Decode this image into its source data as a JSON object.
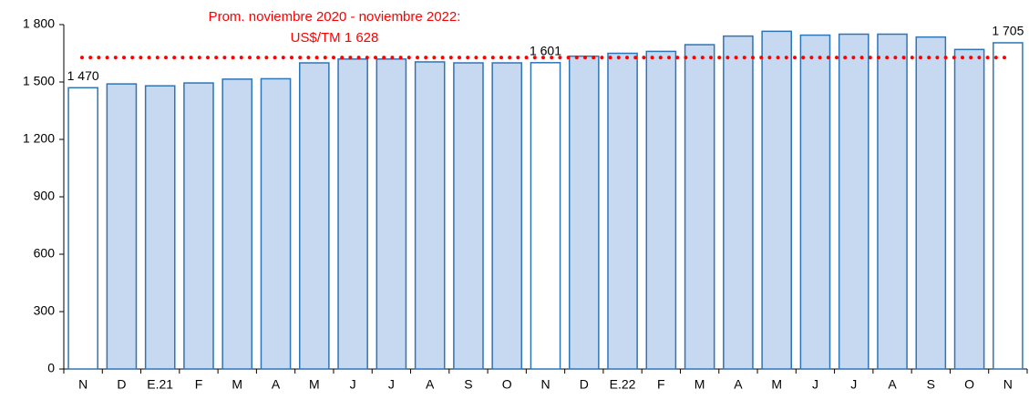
{
  "chart_data": {
    "type": "bar",
    "categories": [
      "N",
      "D",
      "E.21",
      "F",
      "M",
      "A",
      "M",
      "J",
      "J",
      "A",
      "S",
      "O",
      "N",
      "D",
      "E.22",
      "F",
      "M",
      "A",
      "M",
      "J",
      "J",
      "A",
      "S",
      "O",
      "N"
    ],
    "values": [
      1470,
      1490,
      1480,
      1495,
      1515,
      1517,
      1600,
      1620,
      1620,
      1605,
      1600,
      1600,
      1601,
      1635,
      1650,
      1660,
      1695,
      1740,
      1765,
      1745,
      1750,
      1750,
      1735,
      1670,
      1705
    ],
    "value_labels": [
      "1 470",
      null,
      null,
      null,
      null,
      null,
      null,
      null,
      null,
      null,
      null,
      null,
      "1 601",
      null,
      null,
      null,
      null,
      null,
      null,
      null,
      null,
      null,
      null,
      null,
      "1 705"
    ],
    "colors": [
      "#ffffff",
      "#c6d9f1",
      "#c6d9f1",
      "#c6d9f1",
      "#c6d9f1",
      "#c6d9f1",
      "#c6d9f1",
      "#c6d9f1",
      "#c6d9f1",
      "#c6d9f1",
      "#c6d9f1",
      "#c6d9f1",
      "#ffffff",
      "#c6d9f1",
      "#c6d9f1",
      "#c6d9f1",
      "#c6d9f1",
      "#c6d9f1",
      "#c6d9f1",
      "#c6d9f1",
      "#c6d9f1",
      "#c6d9f1",
      "#c6d9f1",
      "#c6d9f1",
      "#ffffff"
    ],
    "edge_color": "#2e75b6",
    "ylim": [
      0,
      1800
    ],
    "yticks": [
      0,
      300,
      600,
      900,
      {
        "value": 1200,
        "label": "1 200"
      },
      {
        "value": 1500,
        "label": "1 500"
      },
      {
        "value": 1800,
        "label": "1 800"
      }
    ],
    "reference_line": {
      "value": 1628,
      "color": "#ff0000",
      "label": [
        "Prom. noviembre 2020 - noviembre 2022:",
        "US$/TM 1 628"
      ]
    }
  }
}
